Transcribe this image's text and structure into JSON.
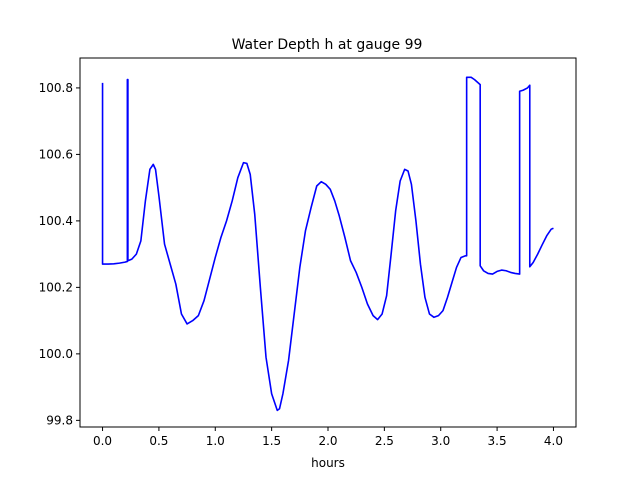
{
  "chart_data": {
    "type": "line",
    "title": "Water Depth h at gauge 99",
    "xlabel": "hours",
    "ylabel": "",
    "xlim": [
      -0.2,
      4.2
    ],
    "ylim": [
      99.78,
      100.89
    ],
    "xticks": [
      0.0,
      0.5,
      1.0,
      1.5,
      2.0,
      2.5,
      3.0,
      3.5,
      4.0
    ],
    "xtick_labels": [
      "0.0",
      "0.5",
      "1.0",
      "1.5",
      "2.0",
      "2.5",
      "3.0",
      "3.5",
      "4.0"
    ],
    "yticks": [
      99.8,
      100.0,
      100.2,
      100.4,
      100.6,
      100.8
    ],
    "ytick_labels": [
      "99.8",
      "100.0",
      "100.2",
      "100.4",
      "100.6",
      "100.8"
    ],
    "grid": false,
    "series": [
      {
        "color": "#0000ff",
        "x": [
          0.0,
          0.0,
          0.05,
          0.1,
          0.15,
          0.2,
          0.22,
          0.22,
          0.225,
          0.225,
          0.26,
          0.3,
          0.34,
          0.38,
          0.42,
          0.45,
          0.47,
          0.5,
          0.55,
          0.6,
          0.65,
          0.7,
          0.75,
          0.8,
          0.85,
          0.9,
          0.95,
          1.0,
          1.05,
          1.1,
          1.15,
          1.2,
          1.25,
          1.28,
          1.31,
          1.35,
          1.4,
          1.45,
          1.5,
          1.55,
          1.57,
          1.6,
          1.65,
          1.7,
          1.75,
          1.8,
          1.85,
          1.9,
          1.94,
          1.98,
          2.02,
          2.06,
          2.1,
          2.15,
          2.2,
          2.25,
          2.3,
          2.35,
          2.4,
          2.44,
          2.48,
          2.52,
          2.56,
          2.6,
          2.64,
          2.68,
          2.71,
          2.74,
          2.78,
          2.82,
          2.86,
          2.9,
          2.94,
          2.98,
          3.02,
          3.06,
          3.1,
          3.14,
          3.18,
          3.22,
          3.23,
          3.23,
          3.27,
          3.3,
          3.35,
          3.35,
          3.38,
          3.42,
          3.46,
          3.5,
          3.54,
          3.58,
          3.62,
          3.66,
          3.7,
          3.7,
          3.73,
          3.77,
          3.79,
          3.79,
          3.82,
          3.86,
          3.9,
          3.94,
          3.98,
          4.0
        ],
        "values": [
          100.815,
          100.27,
          100.27,
          100.271,
          100.273,
          100.276,
          100.278,
          100.825,
          100.825,
          100.28,
          100.285,
          100.3,
          100.34,
          100.46,
          100.555,
          100.57,
          100.555,
          100.475,
          100.33,
          100.27,
          100.21,
          100.12,
          100.09,
          100.1,
          100.115,
          100.16,
          100.225,
          100.29,
          100.35,
          100.4,
          100.46,
          100.53,
          100.575,
          100.573,
          100.54,
          100.42,
          100.2,
          99.99,
          99.88,
          99.83,
          99.835,
          99.88,
          99.98,
          100.12,
          100.26,
          100.37,
          100.44,
          100.505,
          100.518,
          100.51,
          100.495,
          100.46,
          100.415,
          100.35,
          100.28,
          100.245,
          100.2,
          100.15,
          100.115,
          100.103,
          100.12,
          100.175,
          100.3,
          100.43,
          100.52,
          100.555,
          100.55,
          100.51,
          100.4,
          100.27,
          100.17,
          100.12,
          100.11,
          100.115,
          100.13,
          100.17,
          100.215,
          100.26,
          100.29,
          100.295,
          100.295,
          100.832,
          100.832,
          100.825,
          100.81,
          100.265,
          100.25,
          100.242,
          100.24,
          100.248,
          100.252,
          100.25,
          100.245,
          100.242,
          100.24,
          100.79,
          100.793,
          100.8,
          100.808,
          100.262,
          100.275,
          100.3,
          100.328,
          100.355,
          100.375,
          100.378
        ]
      }
    ]
  }
}
